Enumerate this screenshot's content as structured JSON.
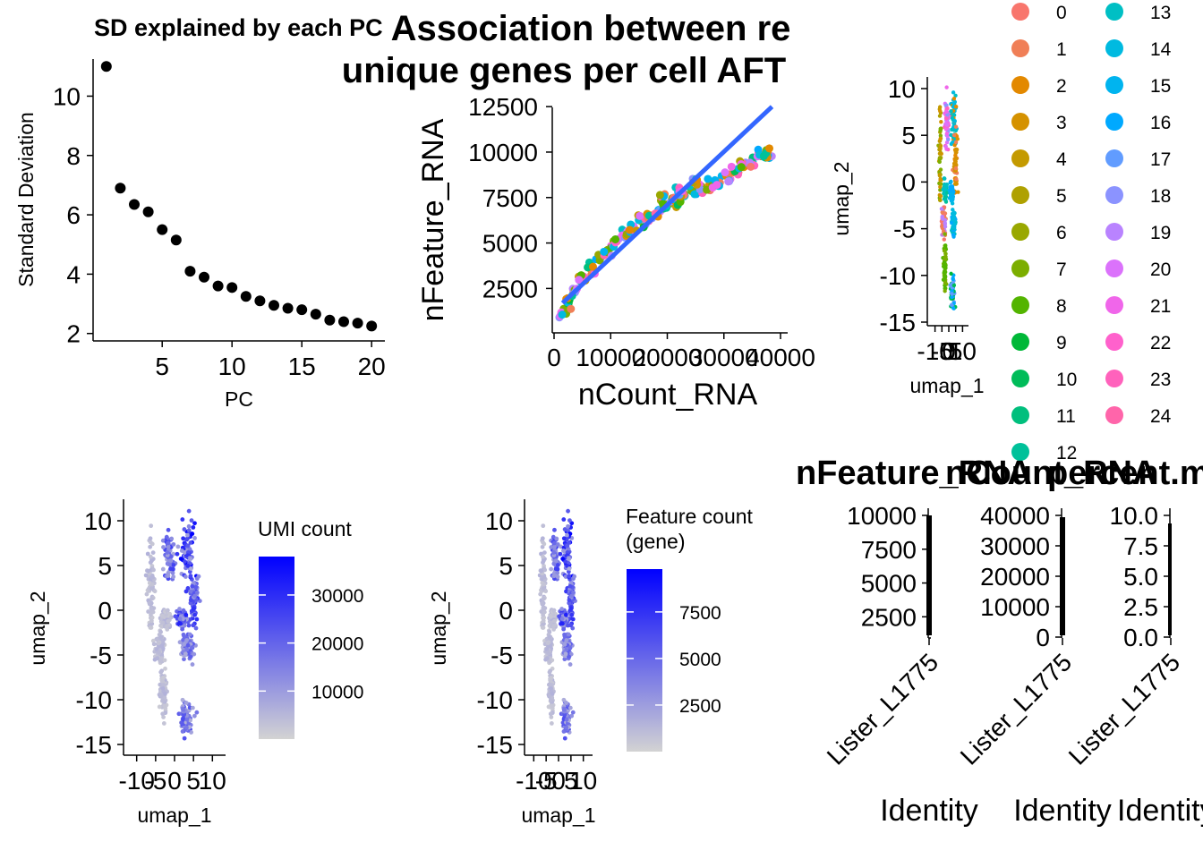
{
  "chart_data": [
    {
      "type": "scatter",
      "title": "SD explained by each PC",
      "xlabel": "PC",
      "ylabel": "Standard Deviation",
      "xlim": [
        0.05,
        20.95
      ],
      "ylim": [
        1.75,
        11.25
      ],
      "xticks": [
        "5",
        "10",
        "15",
        "20"
      ],
      "yticks": [
        "2",
        "4",
        "6",
        "8",
        "10"
      ],
      "x": [
        1,
        2,
        3,
        4,
        5,
        6,
        7,
        8,
        9,
        10,
        11,
        12,
        13,
        14,
        15,
        16,
        17,
        18,
        19,
        20
      ],
      "y": [
        11.0,
        6.9,
        6.35,
        6.1,
        5.5,
        5.15,
        4.1,
        3.9,
        3.6,
        3.55,
        3.25,
        3.1,
        2.95,
        2.85,
        2.8,
        2.65,
        2.45,
        2.4,
        2.35,
        2.25
      ]
    },
    {
      "type": "scatter",
      "title_line1": "Association between re",
      "title_line2": "unique genes per cell AFT",
      "xlabel": "nCount_RNA",
      "ylabel": "nFeature_RNA",
      "xlim": [
        0,
        40000
      ],
      "ylim": [
        600,
        13000
      ],
      "xticks": [
        "0",
        "10000",
        "20000",
        "30000",
        "40000"
      ],
      "yticks": [
        "2500",
        "5000",
        "7500",
        "10000",
        "12500"
      ],
      "fit_line": {
        "x": [
          1500,
          38500
        ],
        "y": [
          1700,
          12500
        ],
        "color": "#3366ff"
      },
      "points": [
        {
          "x": 1500,
          "y": 1100,
          "c": 16
        },
        {
          "x": 2500,
          "y": 1700,
          "c": 9
        },
        {
          "x": 3500,
          "y": 2300,
          "c": 0
        },
        {
          "x": 5000,
          "y": 3000,
          "c": 6
        },
        {
          "x": 6500,
          "y": 3600,
          "c": 2
        },
        {
          "x": 8000,
          "y": 4200,
          "c": 13
        },
        {
          "x": 9500,
          "y": 4600,
          "c": 7
        },
        {
          "x": 11000,
          "y": 5100,
          "c": 0
        },
        {
          "x": 12500,
          "y": 5500,
          "c": 9
        },
        {
          "x": 14000,
          "y": 5900,
          "c": 20
        },
        {
          "x": 15500,
          "y": 6200,
          "c": 4
        },
        {
          "x": 17000,
          "y": 6500,
          "c": 1
        },
        {
          "x": 18500,
          "y": 6800,
          "c": 15
        },
        {
          "x": 20000,
          "y": 7100,
          "c": 7
        },
        {
          "x": 21500,
          "y": 7300,
          "c": 2
        },
        {
          "x": 23000,
          "y": 7600,
          "c": 13
        },
        {
          "x": 24500,
          "y": 7900,
          "c": 9
        },
        {
          "x": 26000,
          "y": 8100,
          "c": 6
        },
        {
          "x": 27500,
          "y": 8200,
          "c": 2
        },
        {
          "x": 29000,
          "y": 8400,
          "c": 1
        },
        {
          "x": 30500,
          "y": 8700,
          "c": 2
        },
        {
          "x": 32000,
          "y": 8900,
          "c": 4
        },
        {
          "x": 33500,
          "y": 9200,
          "c": 2
        },
        {
          "x": 35000,
          "y": 9500,
          "c": 14
        },
        {
          "x": 36500,
          "y": 9800,
          "c": 2
        },
        {
          "x": 38000,
          "y": 9700,
          "c": 15
        },
        {
          "x": 37500,
          "y": 9900,
          "c": 3
        },
        {
          "x": 22000,
          "y": 7800,
          "c": 16
        },
        {
          "x": 25000,
          "y": 8300,
          "c": 8
        },
        {
          "x": 19000,
          "y": 7400,
          "c": 21
        }
      ]
    },
    {
      "type": "scatter",
      "name": "umap_clusters",
      "xlabel": "umap_1",
      "ylabel": "umap_2",
      "xlim": [
        -13,
        13
      ],
      "ylim": [
        -15.5,
        11.5
      ],
      "xticks": [
        "-10",
        "-5",
        "0",
        "5",
        "10"
      ],
      "yticks": [
        "10",
        "5",
        "0",
        "-5",
        "-10",
        "-15"
      ],
      "legend": [
        "0",
        "1",
        "2",
        "3",
        "4",
        "5",
        "6",
        "7",
        "8",
        "9",
        "10",
        "11",
        "12",
        "13",
        "14",
        "15",
        "16",
        "17",
        "18",
        "19",
        "20",
        "21",
        "22",
        "23",
        "24"
      ],
      "legend_colors": [
        "#F8766D",
        "#F07F57",
        "#E38900",
        "#D59200",
        "#C49A00",
        "#AFA100",
        "#99A800",
        "#7CAE00",
        "#53B400",
        "#00B838",
        "#00BC59",
        "#00BF7D",
        "#00C19A",
        "#00BFC4",
        "#00BAE0",
        "#00B4EF",
        "#00A9FF",
        "#619CFF",
        "#8B93FF",
        "#B983FF",
        "#DB72FB",
        "#F066EA",
        "#FF61CC",
        "#FF62BC",
        "#FF65AA"
      ],
      "legend_position": "right"
    },
    {
      "type": "scatter",
      "name": "umap_umi",
      "xlabel": "umap_1",
      "ylabel": "umap_2",
      "xticks": [
        "-10",
        "-5",
        "0",
        "5",
        "10"
      ],
      "yticks": [
        "10",
        "5",
        "0",
        "-5",
        "-10",
        "-15"
      ],
      "legend_title": "UMI count",
      "colorbar_ticks": [
        "30000",
        "20000",
        "10000"
      ],
      "colorbar_range": [
        0,
        38000
      ],
      "colors": {
        "low": "#d3d3d3",
        "high": "#0000ff"
      }
    },
    {
      "type": "scatter",
      "name": "umap_feature",
      "xlabel": "umap_1",
      "ylabel": "umap_2",
      "xticks": [
        "-10",
        "-5",
        "0",
        "5",
        "10"
      ],
      "yticks": [
        "10",
        "5",
        "0",
        "-5",
        "-10",
        "-15"
      ],
      "legend_title_line1": "Feature count",
      "legend_title_line2": "(gene)",
      "colorbar_ticks": [
        "7500",
        "5000",
        "2500"
      ],
      "colorbar_range": [
        0,
        9800
      ],
      "colors": {
        "low": "#d3d3d3",
        "high": "#0000ff"
      }
    },
    {
      "type": "violin",
      "title": "nFeature_RNA",
      "xlabel": "Identity",
      "category": "Lister_L1775",
      "yticks": [
        "10000",
        "7500",
        "5000",
        "2500"
      ],
      "ylim": [
        1000,
        10000
      ]
    },
    {
      "type": "violin",
      "title": "nCount_RNA",
      "xlabel": "Identity",
      "category": "Lister_L1775",
      "yticks": [
        "40000",
        "30000",
        "20000",
        "10000",
        "0"
      ],
      "ylim": [
        0,
        40000
      ]
    },
    {
      "type": "violin",
      "title": "percent.mt",
      "xlabel": "Identity",
      "category": "Lister_L1775",
      "yticks": [
        "10.0",
        "7.5",
        "5.0",
        "2.5",
        "0.0"
      ],
      "ylim": [
        0,
        10
      ]
    }
  ]
}
